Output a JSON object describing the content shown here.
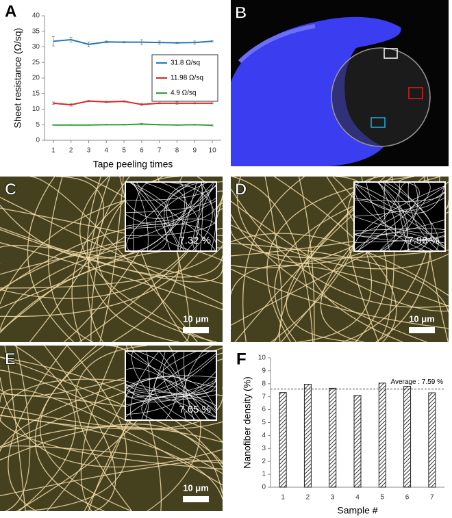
{
  "panel_labels": [
    "A",
    "B",
    "C",
    "D",
    "E",
    "F"
  ],
  "micrographs": [
    {
      "coverage": "7.32 %",
      "scale_bar": "10 μm"
    },
    {
      "coverage": "7.96 %",
      "scale_bar": "10 μm"
    },
    {
      "coverage": "7.65 %",
      "scale_bar": "10 μm"
    }
  ],
  "chart_data": [
    {
      "type": "line",
      "xlabel": "Tape peeling times",
      "ylabel": "Sheet resistance (Ω/sq)",
      "x": [
        1,
        2,
        3,
        4,
        5,
        6,
        7,
        8,
        9,
        10
      ],
      "xlim": [
        0.5,
        10.5
      ],
      "xticks": [
        1,
        2,
        3,
        4,
        5,
        6,
        7,
        8,
        9,
        10
      ],
      "ylim": [
        0,
        40
      ],
      "yticks": [
        0,
        5,
        10,
        15,
        20,
        25,
        30,
        35,
        40
      ],
      "legend": "center right",
      "series": [
        {
          "name": "31.8 Ω/sq",
          "color": "#1f77b4",
          "values": [
            31.8,
            32.3,
            30.8,
            31.6,
            31.5,
            31.5,
            31.4,
            31.3,
            31.4,
            31.8
          ],
          "errors": [
            1.5,
            0.8,
            0.8,
            0.3,
            0.2,
            0.8,
            0.5,
            0.2,
            0.5,
            0.2
          ]
        },
        {
          "name": "11.98 Ω/sq",
          "color": "#d62728",
          "values": [
            11.9,
            11.4,
            12.6,
            12.3,
            12.5,
            11.5,
            11.9,
            11.9,
            11.9,
            11.9
          ],
          "errors": [
            0.4,
            0.4,
            0.2,
            0.2,
            0.2,
            0.3,
            0.2,
            0.4,
            0.2,
            0.2
          ]
        },
        {
          "name": "4.9 Ω/sq",
          "color": "#2ca02c",
          "values": [
            4.9,
            4.9,
            4.9,
            5.0,
            5.0,
            5.2,
            5.0,
            4.9,
            5.0,
            4.8
          ],
          "errors": [
            0.1,
            0.1,
            0.1,
            0.1,
            0.1,
            0.2,
            0.1,
            0.1,
            0.1,
            0.2
          ]
        }
      ]
    },
    {
      "type": "bar",
      "xlabel": "Sample #",
      "ylabel": "Nanofiber density (%)",
      "categories": [
        "1",
        "2",
        "3",
        "4",
        "5",
        "6",
        "7"
      ],
      "values": [
        7.32,
        7.96,
        7.65,
        7.1,
        8.05,
        7.8,
        7.3
      ],
      "color": "#888888",
      "hatch": true,
      "ylim": [
        0,
        10
      ],
      "yticks": [
        0,
        1,
        2,
        3,
        4,
        5,
        6,
        7,
        8,
        9,
        10
      ],
      "reference_line": {
        "value": 7.59,
        "label": "Average : 7.59 %"
      }
    }
  ]
}
